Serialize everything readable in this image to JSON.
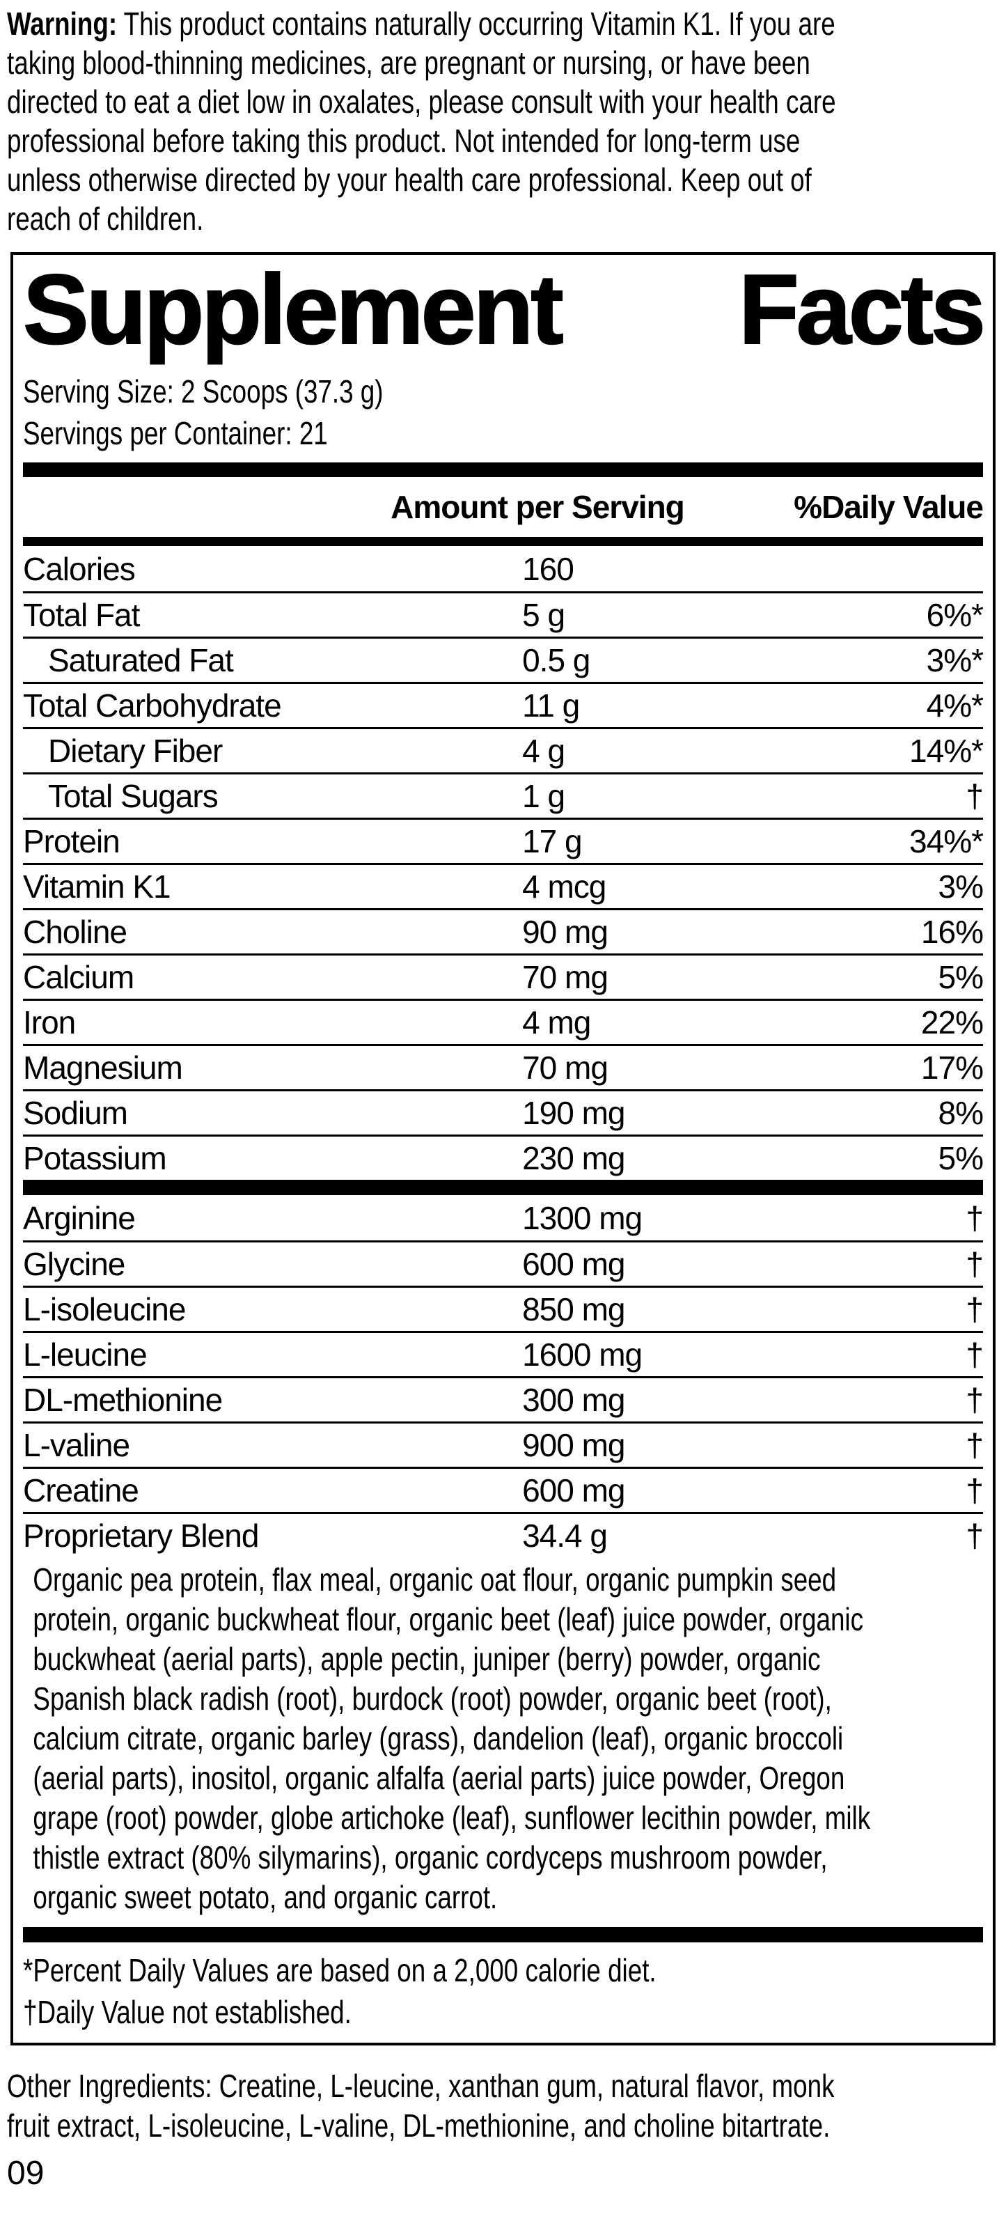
{
  "colors": {
    "text": "#000000",
    "background": "#ffffff"
  },
  "warning": {
    "bold_label": "Warning:",
    "first_line": " This product contains naturally occurring Vitamin K1. If you are",
    "remaining_lines": [
      "taking blood-thinning medicines, are pregnant or nursing, or have been",
      "directed to eat a diet low in oxalates, please consult with your health care",
      "professional before taking this product. Not intended for long-term use",
      "unless otherwise directed by your health care professional. Keep out of",
      "reach of children."
    ]
  },
  "panel": {
    "title_words": [
      "Supplement",
      "Facts"
    ],
    "serving_size": "Serving Size: 2 Scoops (37.3 g)",
    "servings_per_container": "Servings per Container: 21",
    "header": {
      "amount": "Amount per Serving",
      "dv": "%Daily Value"
    },
    "main_rows": [
      {
        "name": "Calories",
        "amount": "160",
        "dv": "",
        "indent": false
      },
      {
        "name": "Total Fat",
        "amount": "5 g",
        "dv": "6%*",
        "indent": false
      },
      {
        "name": "Saturated Fat",
        "amount": "0.5 g",
        "dv": "3%*",
        "indent": true
      },
      {
        "name": "Total Carbohydrate",
        "amount": "11 g",
        "dv": "4%*",
        "indent": false
      },
      {
        "name": "Dietary Fiber",
        "amount": "4 g",
        "dv": "14%*",
        "indent": true
      },
      {
        "name": "Total Sugars",
        "amount": "1 g",
        "dv": "†",
        "indent": true
      },
      {
        "name": "Protein",
        "amount": "17 g",
        "dv": "34%*",
        "indent": false
      },
      {
        "name": "Vitamin K1",
        "amount": "4 mcg",
        "dv": "3%",
        "indent": false
      },
      {
        "name": "Choline",
        "amount": "90 mg",
        "dv": "16%",
        "indent": false
      },
      {
        "name": "Calcium",
        "amount": "70 mg",
        "dv": "5%",
        "indent": false
      },
      {
        "name": "Iron",
        "amount": "4 mg",
        "dv": "22%",
        "indent": false
      },
      {
        "name": "Magnesium",
        "amount": "70 mg",
        "dv": "17%",
        "indent": false
      },
      {
        "name": "Sodium",
        "amount": "190 mg",
        "dv": "8%",
        "indent": false
      },
      {
        "name": "Potassium",
        "amount": "230 mg",
        "dv": "5%",
        "indent": false
      }
    ],
    "amino_rows": [
      {
        "name": "Arginine",
        "amount": "1300 mg",
        "dv": "†"
      },
      {
        "name": "Glycine",
        "amount": "600 mg",
        "dv": "†"
      },
      {
        "name": "L-isoleucine",
        "amount": "850 mg",
        "dv": "†"
      },
      {
        "name": "L-leucine",
        "amount": "1600 mg",
        "dv": "†"
      },
      {
        "name": "DL-methionine",
        "amount": "300 mg",
        "dv": "†"
      },
      {
        "name": "L-valine",
        "amount": "900 mg",
        "dv": "†"
      },
      {
        "name": "Creatine",
        "amount": "600 mg",
        "dv": "†"
      },
      {
        "name": "Proprietary Blend",
        "amount": "34.4 g",
        "dv": "†"
      }
    ],
    "blend_lines": [
      "Organic pea protein, flax meal, organic oat flour, organic pumpkin seed",
      "protein, organic buckwheat flour, organic beet (leaf) juice powder, organic",
      "buckwheat (aerial parts), apple pectin, juniper (berry) powder, organic",
      "Spanish black radish (root), burdock (root) powder, organic beet (root),",
      "calcium citrate, organic barley (grass), dandelion (leaf), organic broccoli",
      "(aerial parts), inositol, organic alfalfa (aerial parts) juice powder, Oregon",
      "grape (root) powder, globe artichoke (leaf), sunflower lecithin powder, milk",
      "thistle extract (80% silymarins), organic cordyceps mushroom powder,",
      "organic sweet potato, and organic carrot."
    ],
    "footnotes": [
      "*Percent Daily Values are based on a 2,000 calorie diet.",
      "†Daily Value not established."
    ]
  },
  "other_ingredients_lines": [
    "Other Ingredients: Creatine, L-leucine, xanthan gum, natural flavor, monk",
    "fruit extract, L-isoleucine, L-valine, DL-methionine, and choline bitartrate."
  ],
  "page_code": "09"
}
